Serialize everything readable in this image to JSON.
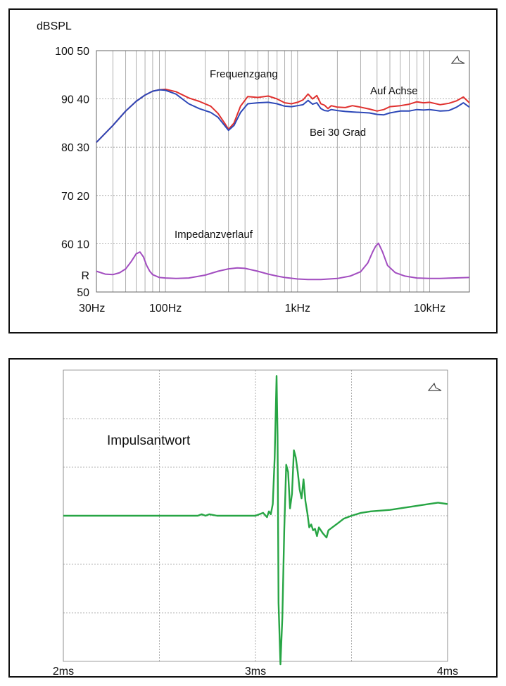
{
  "colors": {
    "on_axis": "#e0312f",
    "off_axis": "#2d48b8",
    "impedance": "#a24dc0",
    "impulse": "#27a544",
    "grid": "#9a9a9a",
    "frame": "#111111"
  },
  "chart_data": [
    {
      "type": "line",
      "x_scale": "log",
      "xlim": [
        30,
        20000
      ],
      "x_ticks": [
        {
          "value": 30,
          "label": "30Hz"
        },
        {
          "value": 100,
          "label": "100Hz"
        },
        {
          "value": 1000,
          "label": "1kHz"
        },
        {
          "value": 10000,
          "label": "10kHz"
        }
      ],
      "ylabel": "dBSPL",
      "ylim_spl": [
        50,
        100
      ],
      "ylim_impedance": [
        0,
        50
      ],
      "y_ticks": [
        {
          "spl": 100,
          "imp": 50,
          "label": "100 50"
        },
        {
          "spl": 90,
          "imp": 40,
          "label": "90 40"
        },
        {
          "spl": 80,
          "imp": 30,
          "label": "80 30"
        },
        {
          "spl": 70,
          "imp": 20,
          "label": "70 20"
        },
        {
          "spl": 60,
          "imp": 10,
          "label": "60 10"
        },
        {
          "spl": 53.5,
          "imp": 3.5,
          "label": "R"
        },
        {
          "spl": 50,
          "imp": 0,
          "label": "50"
        }
      ],
      "grid": true,
      "annotations": [
        "Frequenzgang",
        "Auf Achse",
        "Bei 30 Grad",
        "Impedanzverlauf"
      ],
      "series": [
        {
          "key": "on_axis",
          "label": "Auf Achse",
          "axis": "spl",
          "x": [
            30,
            40,
            50,
            60,
            70,
            80,
            90,
            100,
            120,
            150,
            180,
            220,
            250,
            280,
            300,
            330,
            370,
            420,
            500,
            600,
            700,
            800,
            900,
            1000,
            1100,
            1200,
            1300,
            1400,
            1500,
            1600,
            1700,
            1800,
            2000,
            2300,
            2600,
            3000,
            3500,
            4000,
            4500,
            5000,
            6000,
            7000,
            8000,
            9000,
            10000,
            12000,
            14000,
            16000,
            18000,
            20000
          ],
          "y": [
            81,
            84.5,
            87.5,
            89.5,
            90.8,
            91.6,
            91.9,
            92,
            91.5,
            90.2,
            89.5,
            88.5,
            87,
            85,
            83.7,
            85,
            88.5,
            90.5,
            90.3,
            90.6,
            90,
            89.2,
            89,
            89.3,
            89.8,
            91,
            90,
            90.7,
            89,
            88.7,
            88,
            88.6,
            88.3,
            88.2,
            88.6,
            88.3,
            87.9,
            87.5,
            87.8,
            88.4,
            88.6,
            88.9,
            89.4,
            89.2,
            89.3,
            88.8,
            89.1,
            89.6,
            90.4,
            89.2
          ]
        },
        {
          "key": "off_axis",
          "label": "Bei 30 Grad",
          "axis": "spl",
          "x": [
            30,
            40,
            50,
            60,
            70,
            80,
            90,
            100,
            120,
            150,
            180,
            220,
            250,
            280,
            300,
            330,
            370,
            420,
            500,
            600,
            700,
            800,
            900,
            1000,
            1100,
            1200,
            1300,
            1400,
            1500,
            1600,
            1700,
            1800,
            2000,
            2300,
            2600,
            3000,
            3500,
            4000,
            4500,
            5000,
            6000,
            7000,
            8000,
            9000,
            10000,
            12000,
            14000,
            16000,
            18000,
            20000
          ],
          "y": [
            81,
            84.5,
            87.5,
            89.5,
            90.8,
            91.6,
            91.9,
            91.8,
            91,
            89,
            88,
            87.2,
            86.2,
            84.5,
            83.5,
            84.5,
            87.2,
            89,
            89.2,
            89.3,
            89,
            88.5,
            88.4,
            88.6,
            88.8,
            89.7,
            88.9,
            89.2,
            88,
            87.6,
            87.5,
            87.8,
            87.6,
            87.4,
            87.3,
            87.2,
            87.1,
            86.8,
            86.7,
            87.1,
            87.5,
            87.5,
            87.8,
            87.7,
            87.8,
            87.5,
            87.6,
            88.3,
            89.2,
            88.3
          ]
        },
        {
          "key": "impedance",
          "label": "Impedanzverlauf",
          "axis": "impedance",
          "x": [
            30,
            35,
            40,
            45,
            50,
            55,
            60,
            64,
            68,
            72,
            76,
            80,
            90,
            100,
            120,
            150,
            200,
            250,
            300,
            350,
            400,
            500,
            600,
            700,
            800,
            1000,
            1200,
            1500,
            2000,
            2500,
            3000,
            3400,
            3700,
            3900,
            4100,
            4400,
            4800,
            5500,
            6500,
            8000,
            10000,
            12000,
            15000,
            20000
          ],
          "y": [
            4.3,
            3.7,
            3.6,
            4.0,
            4.8,
            6.3,
            7.9,
            8.3,
            7.3,
            5.5,
            4.3,
            3.6,
            3.0,
            2.9,
            2.8,
            2.9,
            3.5,
            4.3,
            4.8,
            5.0,
            4.9,
            4.3,
            3.7,
            3.3,
            3.0,
            2.7,
            2.6,
            2.6,
            2.8,
            3.3,
            4.2,
            6.0,
            8.3,
            9.5,
            10.1,
            8.3,
            5.5,
            4.0,
            3.3,
            2.9,
            2.8,
            2.8,
            2.9,
            3.0
          ]
        }
      ]
    },
    {
      "type": "line",
      "title": "Impulsantwort",
      "xlim": [
        2,
        4
      ],
      "ylim": [
        -1,
        1
      ],
      "x_ticks": [
        {
          "value": 2,
          "label": "2ms"
        },
        {
          "value": 3,
          "label": "3ms"
        },
        {
          "value": 4,
          "label": "4ms"
        }
      ],
      "grid": true,
      "series": [
        {
          "key": "impulse",
          "label": "Impulsantwort",
          "x": [
            2.0,
            2.7,
            2.72,
            2.74,
            2.76,
            2.8,
            2.9,
            3.0,
            3.04,
            3.06,
            3.07,
            3.08,
            3.09,
            3.1,
            3.11,
            3.115,
            3.12,
            3.13,
            3.14,
            3.15,
            3.16,
            3.17,
            3.18,
            3.19,
            3.2,
            3.21,
            3.22,
            3.23,
            3.24,
            3.25,
            3.26,
            3.27,
            3.28,
            3.29,
            3.3,
            3.31,
            3.32,
            3.33,
            3.35,
            3.37,
            3.38,
            3.4,
            3.43,
            3.46,
            3.5,
            3.55,
            3.6,
            3.7,
            3.8,
            3.9,
            3.95,
            4.0
          ],
          "y": [
            0.0,
            0.0,
            0.01,
            0.0,
            0.01,
            0.0,
            0.0,
            0.0,
            0.02,
            -0.01,
            0.03,
            0.01,
            0.08,
            0.4,
            0.96,
            0.55,
            -0.6,
            -1.02,
            -0.7,
            -0.1,
            0.35,
            0.3,
            0.05,
            0.15,
            0.45,
            0.4,
            0.3,
            0.18,
            0.12,
            0.25,
            0.1,
            0.02,
            -0.08,
            -0.06,
            -0.1,
            -0.09,
            -0.14,
            -0.08,
            -0.12,
            -0.15,
            -0.1,
            -0.08,
            -0.05,
            -0.02,
            0.0,
            0.02,
            0.03,
            0.04,
            0.06,
            0.08,
            0.09,
            0.08
          ]
        }
      ]
    }
  ]
}
